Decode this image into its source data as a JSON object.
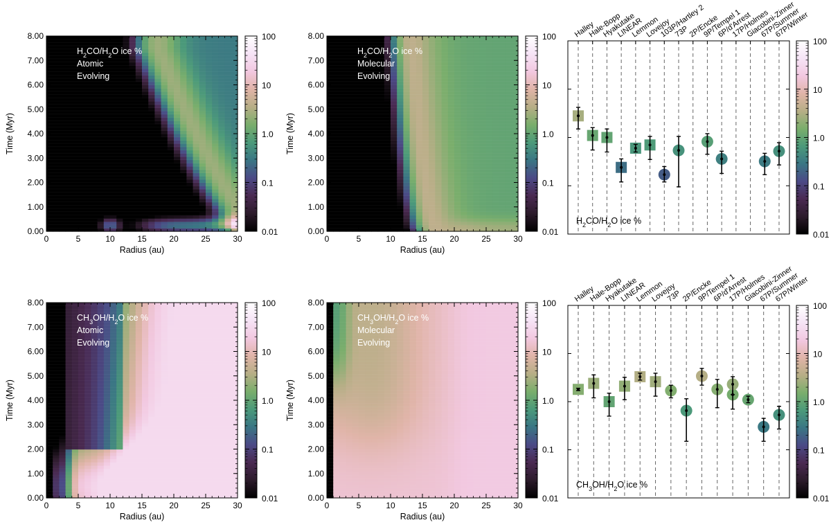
{
  "colormap": [
    "#000000",
    "#2c1b2b",
    "#4a2a52",
    "#4b4a86",
    "#3a7684",
    "#4c9a7a",
    "#7aae6c",
    "#b7ae86",
    "#e0b4a8",
    "#f2c8e0",
    "#f6e4f6",
    "#ffffff"
  ],
  "chart_data": [
    {
      "type": "heatmap",
      "panel": "top-left",
      "annotation": [
        "Atomic",
        "Evolving"
      ],
      "species": "H2CO",
      "xlabel": "Radius (au)",
      "ylabel": "Time (Myr)",
      "xlim": [
        0,
        30
      ],
      "ylim": [
        0,
        8
      ],
      "xticks": [
        "0",
        "5",
        "10",
        "15",
        "20",
        "25",
        "30"
      ],
      "yticks": [
        "0.00",
        "1.00",
        "2.00",
        "3.00",
        "4.00",
        "5.00",
        "6.00",
        "7.00",
        "8.00"
      ],
      "colorbar": {
        "scale": "log",
        "range": [
          0.01,
          100
        ],
        "ticks": [
          "0.01",
          "0.1",
          "1.0",
          "10",
          "100"
        ]
      },
      "summary": "Near-zero (<0.01%) inside ~12-15 au at late times; band of ~0.1-10% moves inward over time from ~30 au at t~0.5 Myr to ~15 au at 8 Myr; small enhancement near 9-10 au and 15-20 au at t<0.3 Myr"
    },
    {
      "type": "heatmap",
      "panel": "top-middle",
      "annotation": [
        "Molecular",
        "Evolving"
      ],
      "species": "H2CO",
      "xlabel": "Radius (au)",
      "ylabel": "Time (Myr)",
      "xlim": [
        0,
        30
      ],
      "ylim": [
        0,
        8
      ],
      "xticks": [
        "0",
        "5",
        "10",
        "15",
        "20",
        "25",
        "30"
      ],
      "yticks": [
        "0.00",
        "1.00",
        "2.00",
        "3.00",
        "4.00",
        "5.00",
        "6.00",
        "7.00",
        "8.00"
      ],
      "colorbar": {
        "scale": "log",
        "range": [
          0.01,
          100
        ],
        "ticks": [
          "0.01",
          "0.1",
          "1.0",
          "10",
          "100"
        ]
      },
      "summary": "Near-zero inside ~10 au; band of ~1-10% from ~12 au (t~0.3 Myr) expanding inward to ~10 au at 8 Myr; outer disk ~0.3-1%"
    },
    {
      "type": "scatter",
      "panel": "top-right",
      "legend_label": "H2CO/H2O ice %",
      "scale": "log",
      "ylim": [
        0.01,
        100
      ],
      "categories": [
        "Halley",
        "Hale-Bopp",
        "Hyakutake",
        "LINEAR",
        "Lemmon",
        "Lovejoy",
        "103P/Hartley 2",
        "73P",
        "2P/Encke",
        "9P/Tempel 1",
        "6P/d'Arrest",
        "17P/Holmes",
        "Giacobini-Zinner",
        "67P/Summer",
        "67P/Winter"
      ],
      "points": [
        {
          "comet": "Halley",
          "value": 2.8,
          "err_lo": 1.5,
          "err_hi": 4.2,
          "marker": "square"
        },
        {
          "comet": "Hale-Bopp",
          "value": 1.1,
          "err_lo": 0.55,
          "err_hi": 1.6,
          "marker": "square"
        },
        {
          "comet": "Hyakutake",
          "value": 1.0,
          "err_lo": 0.5,
          "err_hi": 1.5,
          "marker": "square"
        },
        {
          "comet": "LINEAR",
          "value": 0.24,
          "err_lo": 0.12,
          "err_hi": 0.36,
          "marker": "square"
        },
        {
          "comet": "Lemmon",
          "value": 0.6,
          "err_lo": 0.5,
          "err_hi": 0.72,
          "marker": "square"
        },
        {
          "comet": "Lovejoy",
          "value": 0.7,
          "err_lo": 0.35,
          "err_hi": 1.05,
          "marker": "square"
        },
        {
          "comet": "103P/Hartley 2",
          "value": 0.17,
          "err_lo": 0.12,
          "err_hi": 0.25,
          "marker": "circle"
        },
        {
          "comet": "73P",
          "value": 0.54,
          "err_lo": 0.095,
          "err_hi": 1.05,
          "marker": "circle"
        },
        {
          "comet": "9P/Tempel 1",
          "value": 0.82,
          "err_lo": 0.45,
          "err_hi": 1.2,
          "marker": "circle"
        },
        {
          "comet": "6P/d'Arrest",
          "value": 0.36,
          "err_lo": 0.18,
          "err_hi": 0.52,
          "marker": "circle"
        },
        {
          "comet": "67P/Summer",
          "value": 0.32,
          "err_lo": 0.17,
          "err_hi": 0.47,
          "marker": "circle"
        },
        {
          "comet": "67P/Winter",
          "value": 0.52,
          "err_lo": 0.27,
          "err_hi": 0.78,
          "marker": "circle"
        }
      ],
      "colorbar": {
        "scale": "log",
        "range": [
          0.01,
          100
        ],
        "ticks": [
          "0.01",
          "0.1",
          "1.0",
          "10",
          "100"
        ]
      }
    },
    {
      "type": "heatmap",
      "panel": "bottom-left",
      "annotation": [
        "Atomic",
        "Evolving"
      ],
      "species": "CH3OH",
      "xlabel": "Radius (au)",
      "ylabel": "Time (Myr)",
      "xlim": [
        0,
        30
      ],
      "ylim": [
        0,
        8
      ],
      "xticks": [
        "0",
        "5",
        "10",
        "15",
        "20",
        "25",
        "30"
      ],
      "yticks": [
        "0.00",
        "1.00",
        "2.00",
        "3.00",
        "4.00",
        "5.00",
        "6.00",
        "7.00",
        "8.00"
      ],
      "colorbar": {
        "scale": "log",
        "range": [
          0.01,
          100
        ],
        "ticks": [
          "0.01",
          "0.1",
          "1.0",
          "10",
          "100"
        ]
      },
      "summary": "Near-zero inside ~4 au; low values (<0.1%) from 4-12 au at late times; rising to ~10-30% beyond ~15 au at late times; ~1-10% at early times across 5-30 au"
    },
    {
      "type": "heatmap",
      "panel": "bottom-middle",
      "annotation": [
        "Molecular",
        "Evolving"
      ],
      "species": "CH3OH",
      "xlabel": "Radius (au)",
      "ylabel": "Time (Myr)",
      "xlim": [
        0,
        30
      ],
      "ylim": [
        0,
        8
      ],
      "xticks": [
        "0",
        "5",
        "10",
        "15",
        "20",
        "25",
        "30"
      ],
      "yticks": [
        "0.00",
        "1.00",
        "2.00",
        "3.00",
        "4.00",
        "5.00",
        "6.00",
        "7.00",
        "8.00"
      ],
      "colorbar": {
        "scale": "log",
        "range": [
          0.01,
          100
        ],
        "ticks": [
          "0.01",
          "0.1",
          "1.0",
          "10",
          "100"
        ]
      },
      "summary": "Mostly ~1-30% everywhere; ~10-30% at early times across disk; ~1-3% from 2-12 au at late times; lowest (~0.1%) near 1-2 au at 8 Myr"
    },
    {
      "type": "scatter",
      "panel": "bottom-right",
      "legend_label": "CH3OH/H2O ice %",
      "scale": "log",
      "ylim": [
        0.01,
        100
      ],
      "categories": [
        "Halley",
        "Hale-Bopp",
        "Hyakutake",
        "LINEAR",
        "Lemmon",
        "Lovejoy",
        "73P",
        "2P/Encke",
        "9P/Tempel 1",
        "6P/d'Arrest",
        "17P/Holmes",
        "Giacobini-Zinner",
        "67P/Summer",
        "67P/Winter"
      ],
      "points": [
        {
          "comet": "Halley",
          "value": 1.8,
          "err_lo": 1.7,
          "err_hi": 1.9,
          "marker": "square"
        },
        {
          "comet": "Hale-Bopp",
          "value": 2.4,
          "err_lo": 1.2,
          "err_hi": 3.6,
          "marker": "square"
        },
        {
          "comet": "Hyakutake",
          "value": 1.0,
          "err_lo": 0.5,
          "err_hi": 1.5,
          "marker": "square"
        },
        {
          "comet": "LINEAR",
          "value": 2.1,
          "err_lo": 1.1,
          "err_hi": 3.2,
          "marker": "square"
        },
        {
          "comet": "Lemmon",
          "value": 3.3,
          "err_lo": 2.8,
          "err_hi": 3.9,
          "marker": "square"
        },
        {
          "comet": "Lovejoy",
          "value": 2.6,
          "err_lo": 1.3,
          "err_hi": 3.9,
          "marker": "square"
        },
        {
          "comet": "73P",
          "value": 1.7,
          "err_lo": 1.2,
          "err_hi": 2.2,
          "marker": "circle"
        },
        {
          "comet": "2P/Encke",
          "value": 0.65,
          "err_lo": 0.15,
          "err_hi": 1.15,
          "marker": "circle"
        },
        {
          "comet": "9P/Tempel 1",
          "value": 3.4,
          "err_lo": 2.2,
          "err_hi": 4.9,
          "marker": "circle"
        },
        {
          "comet": "6P/d'Arrest",
          "value": 1.8,
          "err_lo": 0.75,
          "err_hi": 2.9,
          "marker": "circle"
        },
        {
          "comet": "17P/Holmes",
          "value": 1.4,
          "err_lo": 0.7,
          "err_hi": 2.1,
          "marker": "circle"
        },
        {
          "comet": "Giacobini-Zinner",
          "value": 2.3,
          "err_lo": 1.4,
          "err_hi": 3.3,
          "marker": "circle"
        },
        {
          "comet": "Giacobini-Zinner",
          "value": 1.1,
          "err_lo": 0.95,
          "err_hi": 1.3,
          "marker": "circle"
        },
        {
          "comet": "67P/Summer",
          "value": 0.3,
          "err_lo": 0.15,
          "err_hi": 0.45,
          "marker": "circle"
        },
        {
          "comet": "67P/Winter",
          "value": 0.53,
          "err_lo": 0.27,
          "err_hi": 0.8,
          "marker": "circle"
        }
      ],
      "colorbar": {
        "scale": "log",
        "range": [
          0.01,
          100
        ],
        "ticks": [
          "0.01",
          "0.1",
          "1.0",
          "10",
          "100"
        ]
      }
    }
  ]
}
